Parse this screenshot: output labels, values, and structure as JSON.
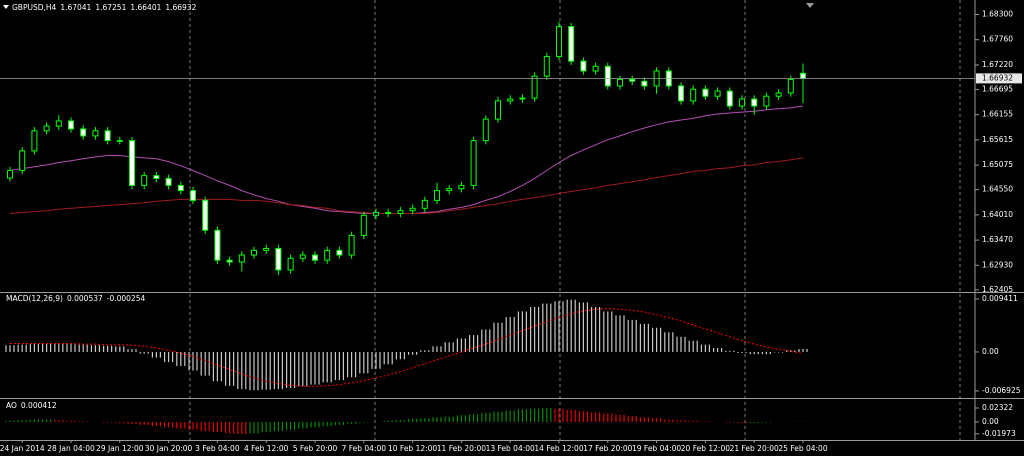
{
  "chart_data": [
    {
      "type": "candlestick",
      "symbol": "GBPUSD,H4",
      "x": [
        null,
        "24 Jan 2014",
        null,
        null,
        null,
        "28 Jan 04:00",
        null,
        null,
        null,
        "29 Jan 12:00",
        null,
        null,
        null,
        "30 Jan 20:00",
        null,
        null,
        null,
        "3 Feb 04:00",
        null,
        null,
        null,
        "4 Feb 12:00",
        null,
        null,
        null,
        "5 Feb 20:00",
        null,
        null,
        null,
        "7 Feb 04:00",
        null,
        null,
        null,
        "10 Feb 12:00",
        null,
        null,
        null,
        "11 Feb 20:00",
        null,
        null,
        null,
        "13 Feb 04:00",
        null,
        null,
        null,
        "14 Feb 12:00",
        null,
        null,
        null,
        "17 Feb 20:00",
        null,
        null,
        null,
        "19 Feb 04:00",
        null,
        null,
        null,
        "20 Feb 12:00",
        null,
        null,
        null,
        "21 Feb 20:00",
        null,
        null,
        null,
        "25 Feb 04:00"
      ],
      "open": [
        1.648,
        1.6496,
        1.6538,
        1.6581,
        1.6591,
        1.6602,
        1.6585,
        1.657,
        1.6581,
        1.656,
        1.656,
        1.6464,
        1.6485,
        1.6479,
        1.6464,
        1.6453,
        1.6432,
        1.6368,
        1.6304,
        1.63,
        1.6315,
        1.6325,
        1.6329,
        1.6283,
        1.6308,
        1.6315,
        1.6304,
        1.6325,
        1.6315,
        1.6357,
        1.64,
        1.6406,
        1.6404,
        1.641,
        1.6415,
        1.6432,
        1.6453,
        1.6457,
        1.6464,
        1.656,
        1.6606,
        1.6645,
        1.6649,
        1.6651,
        1.6698,
        1.674,
        1.6804,
        1.673,
        1.6709,
        1.6719,
        1.6677,
        1.6691,
        1.6687,
        1.6677,
        1.6709,
        1.6677,
        1.6645,
        1.667,
        1.6655,
        1.6666,
        1.6634,
        1.6649,
        1.6634,
        1.6655,
        1.6662,
        1.67041
      ],
      "high": [
        1.6504,
        1.6546,
        1.6589,
        1.6599,
        1.6615,
        1.661,
        1.6593,
        1.6589,
        1.6589,
        1.6568,
        1.6568,
        1.6493,
        1.6493,
        1.6487,
        1.6472,
        1.6461,
        1.644,
        1.6376,
        1.6312,
        1.6323,
        1.6333,
        1.6337,
        1.6337,
        1.6316,
        1.6323,
        1.6323,
        1.6333,
        1.6333,
        1.6365,
        1.6408,
        1.6414,
        1.6414,
        1.6418,
        1.6423,
        1.644,
        1.647,
        1.6465,
        1.6472,
        1.6568,
        1.6614,
        1.6653,
        1.6657,
        1.6659,
        1.6706,
        1.6748,
        1.6815,
        1.6812,
        1.6738,
        1.6727,
        1.6727,
        1.6699,
        1.6699,
        1.6695,
        1.6717,
        1.6717,
        1.6685,
        1.6678,
        1.6678,
        1.6674,
        1.6674,
        1.6657,
        1.6657,
        1.6663,
        1.667,
        1.6699,
        1.67251
      ],
      "low": [
        1.6472,
        1.6488,
        1.653,
        1.6573,
        1.6583,
        1.6577,
        1.6562,
        1.6562,
        1.6552,
        1.6552,
        1.6456,
        1.6456,
        1.6471,
        1.6456,
        1.6445,
        1.6424,
        1.636,
        1.6296,
        1.6292,
        1.628,
        1.6307,
        1.6317,
        1.6272,
        1.6275,
        1.63,
        1.6296,
        1.6296,
        1.6307,
        1.6307,
        1.6349,
        1.6392,
        1.6396,
        1.6396,
        1.6402,
        1.6407,
        1.6424,
        1.6445,
        1.6449,
        1.6456,
        1.6552,
        1.6598,
        1.6637,
        1.6641,
        1.6643,
        1.669,
        1.6732,
        1.6722,
        1.6701,
        1.6701,
        1.6669,
        1.6669,
        1.6679,
        1.6669,
        1.666,
        1.6669,
        1.6637,
        1.6637,
        1.6647,
        1.6647,
        1.6626,
        1.6626,
        1.6615,
        1.6626,
        1.6647,
        1.6654,
        1.66401
      ],
      "close": [
        1.6496,
        1.6538,
        1.6581,
        1.6591,
        1.6602,
        1.6585,
        1.657,
        1.6581,
        1.656,
        1.656,
        1.6464,
        1.6485,
        1.6479,
        1.6464,
        1.6453,
        1.6432,
        1.6368,
        1.6304,
        1.63,
        1.6315,
        1.6325,
        1.6329,
        1.6283,
        1.6308,
        1.6315,
        1.6304,
        1.6325,
        1.6315,
        1.6357,
        1.64,
        1.6406,
        1.6404,
        1.641,
        1.6415,
        1.6432,
        1.6453,
        1.6457,
        1.6464,
        1.656,
        1.6606,
        1.6645,
        1.6649,
        1.6651,
        1.6698,
        1.674,
        1.6804,
        1.673,
        1.6709,
        1.6719,
        1.6677,
        1.6691,
        1.6687,
        1.6677,
        1.6709,
        1.6677,
        1.6645,
        1.667,
        1.6655,
        1.6666,
        1.6634,
        1.6649,
        1.6634,
        1.6655,
        1.6662,
        1.6691,
        1.66932
      ],
      "up_color": "#000000",
      "down_color": "#ffffff",
      "wick_color": "#00ff00",
      "series": [
        {
          "color": "#b34fb3",
          "values": [
            1.6496,
            1.65,
            1.6504,
            1.6508,
            1.6513,
            1.6517,
            1.6521,
            1.6525,
            1.6528,
            1.6528,
            1.6525,
            1.6523,
            1.6521,
            1.6515,
            1.6506,
            1.6496,
            1.6485,
            1.6474,
            1.6464,
            1.6453,
            1.6444,
            1.6436,
            1.643,
            1.6423,
            1.6419,
            1.6415,
            1.641,
            1.6408,
            1.6406,
            1.6404,
            1.6404,
            1.6404,
            1.6404,
            1.6404,
            1.6406,
            1.6408,
            1.6413,
            1.6417,
            1.6423,
            1.6432,
            1.644,
            1.6451,
            1.6464,
            1.6479,
            1.6496,
            1.6513,
            1.6528,
            1.654,
            1.6551,
            1.6562,
            1.657,
            1.6579,
            1.6587,
            1.6594,
            1.66,
            1.6604,
            1.6608,
            1.6613,
            1.6617,
            1.6619,
            1.6621,
            1.6623,
            1.6626,
            1.6628,
            1.663,
            1.6634
          ]
        },
        {
          "color": "#a01c1c",
          "values": [
            1.6404,
            1.6406,
            1.6408,
            1.641,
            1.6413,
            1.6415,
            1.6417,
            1.6419,
            1.6421,
            1.6423,
            1.6425,
            1.6427,
            1.643,
            1.6432,
            1.6434,
            1.6434,
            1.6434,
            1.6434,
            1.6434,
            1.6432,
            1.6432,
            1.643,
            1.6427,
            1.6423,
            1.6421,
            1.6417,
            1.6415,
            1.641,
            1.6408,
            1.6406,
            1.6404,
            1.6404,
            1.6404,
            1.6404,
            1.6404,
            1.6406,
            1.641,
            1.6413,
            1.6417,
            1.6421,
            1.6425,
            1.643,
            1.6434,
            1.6438,
            1.6442,
            1.6447,
            1.6451,
            1.6455,
            1.6459,
            1.6464,
            1.6468,
            1.6472,
            1.6476,
            1.6481,
            1.6485,
            1.6489,
            1.6494,
            1.6496,
            1.65,
            1.6502,
            1.6506,
            1.6508,
            1.6513,
            1.6515,
            1.6519,
            1.6523
          ]
        }
      ],
      "ylim": [
        1.6238,
        1.6861
      ],
      "yticks": [
        {
          "value": 1.683,
          "label": "1.68300"
        },
        {
          "value": 1.6776,
          "label": "1.67760"
        },
        {
          "value": 1.6722,
          "label": "1.67220"
        },
        {
          "value": 1.66695,
          "label": "1.66695"
        },
        {
          "value": 1.66155,
          "label": "1.66155"
        },
        {
          "value": 1.65615,
          "label": "1.65615"
        },
        {
          "value": 1.65075,
          "label": "1.65075"
        },
        {
          "value": 1.6455,
          "label": "1.64550"
        },
        {
          "value": 1.6401,
          "label": "1.64010"
        },
        {
          "value": 1.6347,
          "label": "1.63470"
        },
        {
          "value": 1.6293,
          "label": "1.62930"
        },
        {
          "value": 1.62405,
          "label": "1.62405"
        }
      ]
    },
    {
      "type": "macd",
      "title": "MACD(12,26,9)",
      "series": [
        {
          "color": "#c8c8c8",
          "values": [
            0.0012,
            0.0013,
            0.0014,
            0.0015,
            0.0015,
            0.0014,
            0.0013,
            0.0012,
            0.0011,
            0.001,
            0.0005,
            -0.0003,
            -0.001,
            -0.0018,
            -0.0025,
            -0.0033,
            -0.0042,
            -0.0052,
            -0.006,
            -0.0066,
            -0.0068,
            -0.0067,
            -0.0066,
            -0.0064,
            -0.0061,
            -0.0058,
            -0.0054,
            -0.005,
            -0.0045,
            -0.0038,
            -0.003,
            -0.0022,
            -0.0013,
            -0.0005,
            0.0003,
            0.001,
            0.0017,
            0.0024,
            0.003,
            0.004,
            0.0052,
            0.0062,
            0.0072,
            0.008,
            0.0086,
            0.009,
            0.0093,
            0.0088,
            0.008,
            0.0072,
            0.0065,
            0.0057,
            0.005,
            0.0043,
            0.0035,
            0.0027,
            0.002,
            0.0013,
            0.0007,
            0.0002,
            -0.0002,
            -0.0004,
            -0.0004,
            -0.0001,
            0.0003,
            0.000537
          ]
        },
        {
          "color": "#ff0000",
          "dashed": true,
          "values": [
            0.0015,
            0.0015,
            0.0015,
            0.0015,
            0.0015,
            0.0015,
            0.0014,
            0.0014,
            0.0013,
            0.0013,
            0.0012,
            0.001,
            0.0007,
            0.0003,
            -0.0002,
            -0.0008,
            -0.0015,
            -0.0023,
            -0.0031,
            -0.0039,
            -0.0046,
            -0.0052,
            -0.0056,
            -0.0059,
            -0.0061,
            -0.0061,
            -0.006,
            -0.0058,
            -0.0055,
            -0.0051,
            -0.0046,
            -0.0041,
            -0.0035,
            -0.0028,
            -0.0021,
            -0.0014,
            -0.0007,
            0.0,
            0.0007,
            0.0014,
            0.0022,
            0.003,
            0.0038,
            0.0046,
            0.0054,
            0.0061,
            0.0068,
            0.0073,
            0.0076,
            0.0077,
            0.0076,
            0.0074,
            0.0071,
            0.0066,
            0.0061,
            0.0055,
            0.0048,
            0.0041,
            0.0034,
            0.0027,
            0.002,
            0.0014,
            0.0009,
            0.0005,
            0.0001,
            -0.000254
          ]
        }
      ],
      "ylim": [
        -0.008,
        0.0103
      ],
      "yticks": [
        0.009411,
        {
          "value": 0,
          "label": "0.00"
        },
        -0.006925
      ]
    },
    {
      "type": "ao",
      "title": "AO",
      "up_color": "#008a00",
      "down_color": "#e00000",
      "values": [
        0.002,
        0.003,
        0.004,
        0.004,
        0.003,
        0.002,
        0.001,
        0.0,
        -0.001,
        -0.002,
        -0.003,
        -0.005,
        -0.007,
        -0.009,
        -0.011,
        -0.013,
        -0.015,
        -0.017,
        -0.019,
        -0.02,
        -0.019,
        -0.017,
        -0.015,
        -0.013,
        -0.011,
        -0.009,
        -0.007,
        -0.005,
        -0.003,
        -0.001,
        0.0,
        0.002,
        0.003,
        0.005,
        0.006,
        0.008,
        0.009,
        0.011,
        0.013,
        0.015,
        0.017,
        0.019,
        0.021,
        0.022,
        0.023,
        0.022,
        0.02,
        0.018,
        0.016,
        0.014,
        0.012,
        0.01,
        0.008,
        0.006,
        0.004,
        0.003,
        0.002,
        0.001,
        0.0,
        -0.001,
        -0.002,
        -0.002,
        -0.001,
        0.0,
        0.0003,
        0.000412
      ],
      "ylim": [
        -0.03,
        0.0365
      ],
      "yticks": [
        0.02322,
        {
          "value": 0,
          "label": "0.00"
        },
        -0.01973
      ]
    }
  ]
}
